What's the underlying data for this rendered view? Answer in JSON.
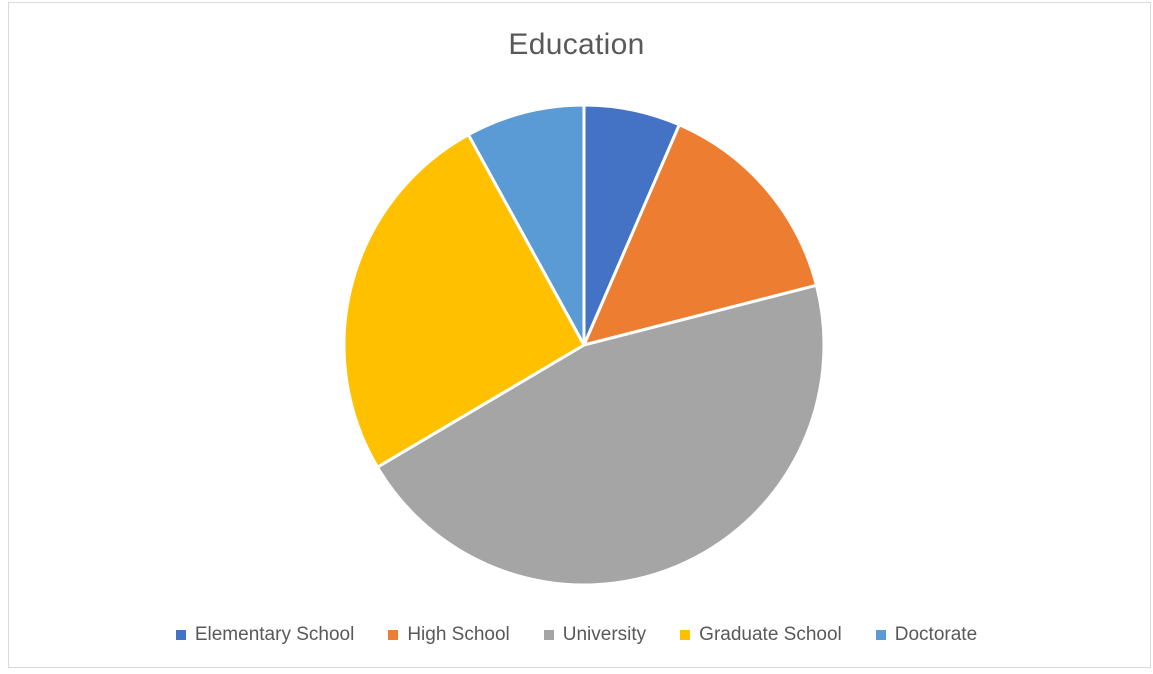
{
  "chart_data": {
    "type": "pie",
    "title": "Education",
    "start_angle": 0,
    "categories": [
      "Elementary School",
      "High School",
      "University",
      "Graduate School",
      "Doctorate"
    ],
    "values": [
      6.5,
      14.5,
      45.5,
      25.5,
      8.0
    ],
    "colors": [
      "#4472c4",
      "#ed7d31",
      "#a5a5a5",
      "#ffc000",
      "#5b9bd5"
    ],
    "legend_position": "bottom"
  }
}
